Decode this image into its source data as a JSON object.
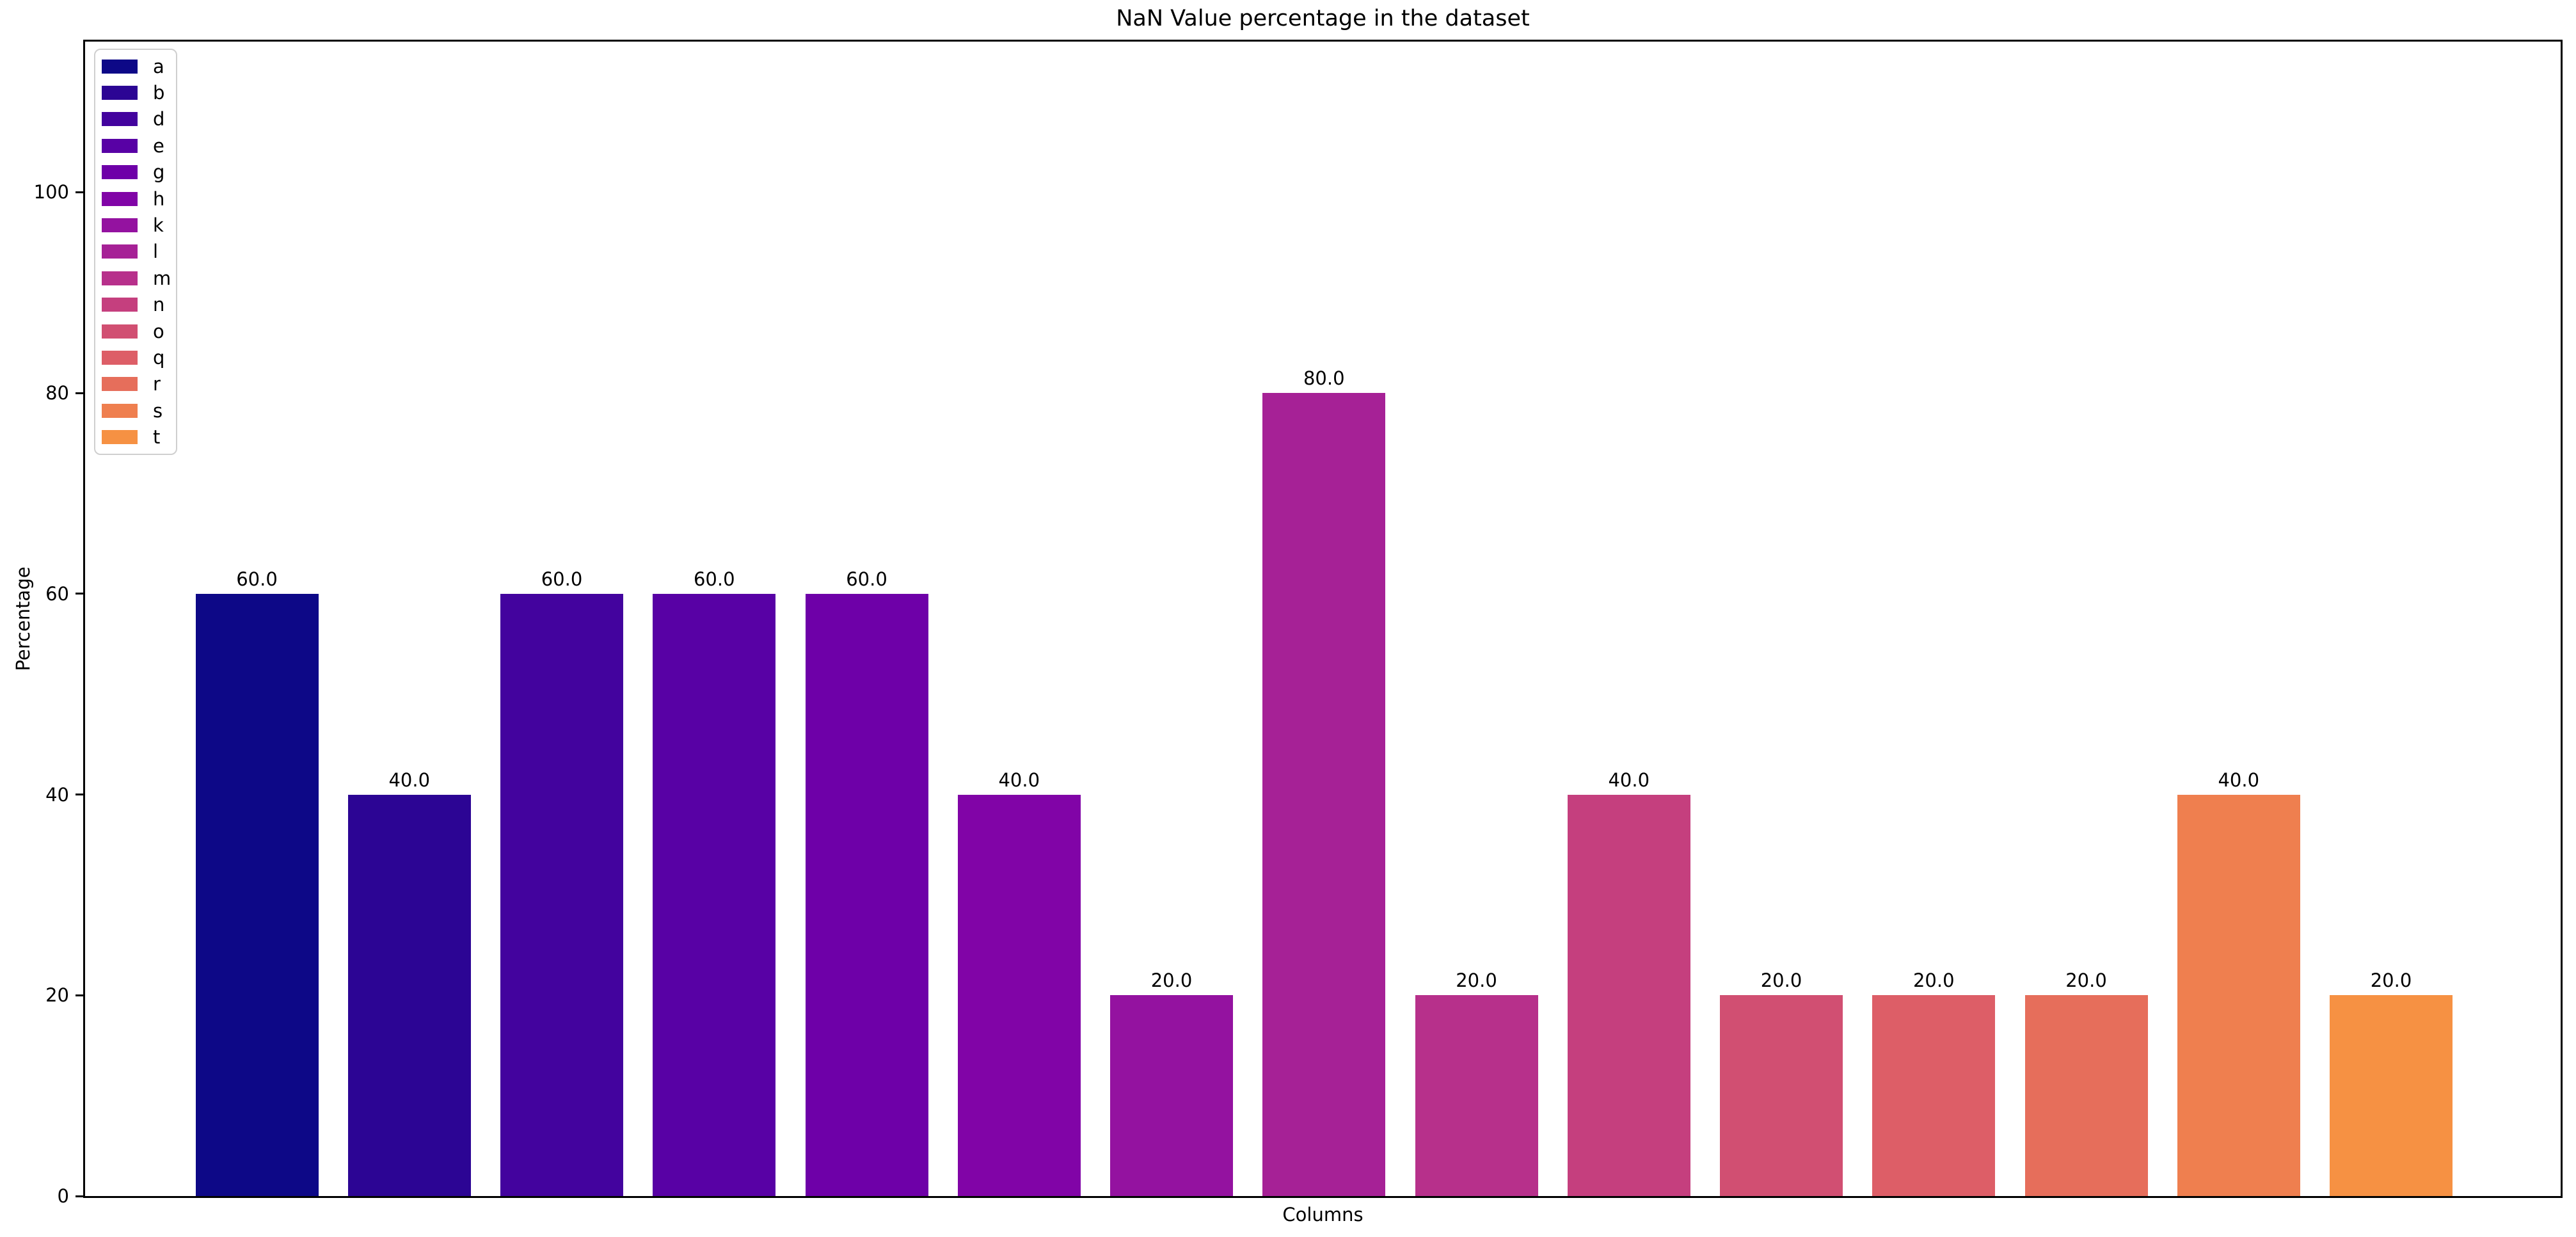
{
  "figure": {
    "background": "#ffffff",
    "text_color": "#000000",
    "spine_color": "#000000",
    "legend_border_color": "#cfcfcf"
  },
  "chart_data": {
    "type": "bar",
    "title": "NaN Value percentage in the dataset",
    "xlabel": "Columns",
    "ylabel": "Percentage",
    "categories": [
      "a",
      "b",
      "d",
      "e",
      "g",
      "h",
      "k",
      "l",
      "m",
      "n",
      "o",
      "q",
      "r",
      "s",
      "t"
    ],
    "values": [
      60.0,
      40.0,
      60.0,
      60.0,
      60.0,
      40.0,
      20.0,
      80.0,
      20.0,
      40.0,
      20.0,
      20.0,
      20.0,
      40.0,
      20.0
    ],
    "bar_labels": [
      "60.0",
      "40.0",
      "60.0",
      "60.0",
      "60.0",
      "40.0",
      "20.0",
      "80.0",
      "20.0",
      "40.0",
      "20.0",
      "20.0",
      "20.0",
      "40.0",
      "20.0"
    ],
    "colors": [
      "#0d0887",
      "#2c0594",
      "#43039e",
      "#5801a5",
      "#6e00a8",
      "#8104a7",
      "#9412a0",
      "#a62196",
      "#b7308b",
      "#c53f7e",
      "#d14f72",
      "#dd5e67",
      "#e66e5b",
      "#ef7f4f",
      "#f69143"
    ],
    "yticks": [
      0,
      20,
      40,
      60,
      80,
      100
    ],
    "ylim": [
      0,
      115
    ],
    "xticks": [],
    "grid": false,
    "legend": {
      "position": "upper-left",
      "entries": [
        "a",
        "b",
        "d",
        "e",
        "g",
        "h",
        "k",
        "l",
        "m",
        "n",
        "o",
        "q",
        "r",
        "s",
        "t"
      ]
    }
  }
}
